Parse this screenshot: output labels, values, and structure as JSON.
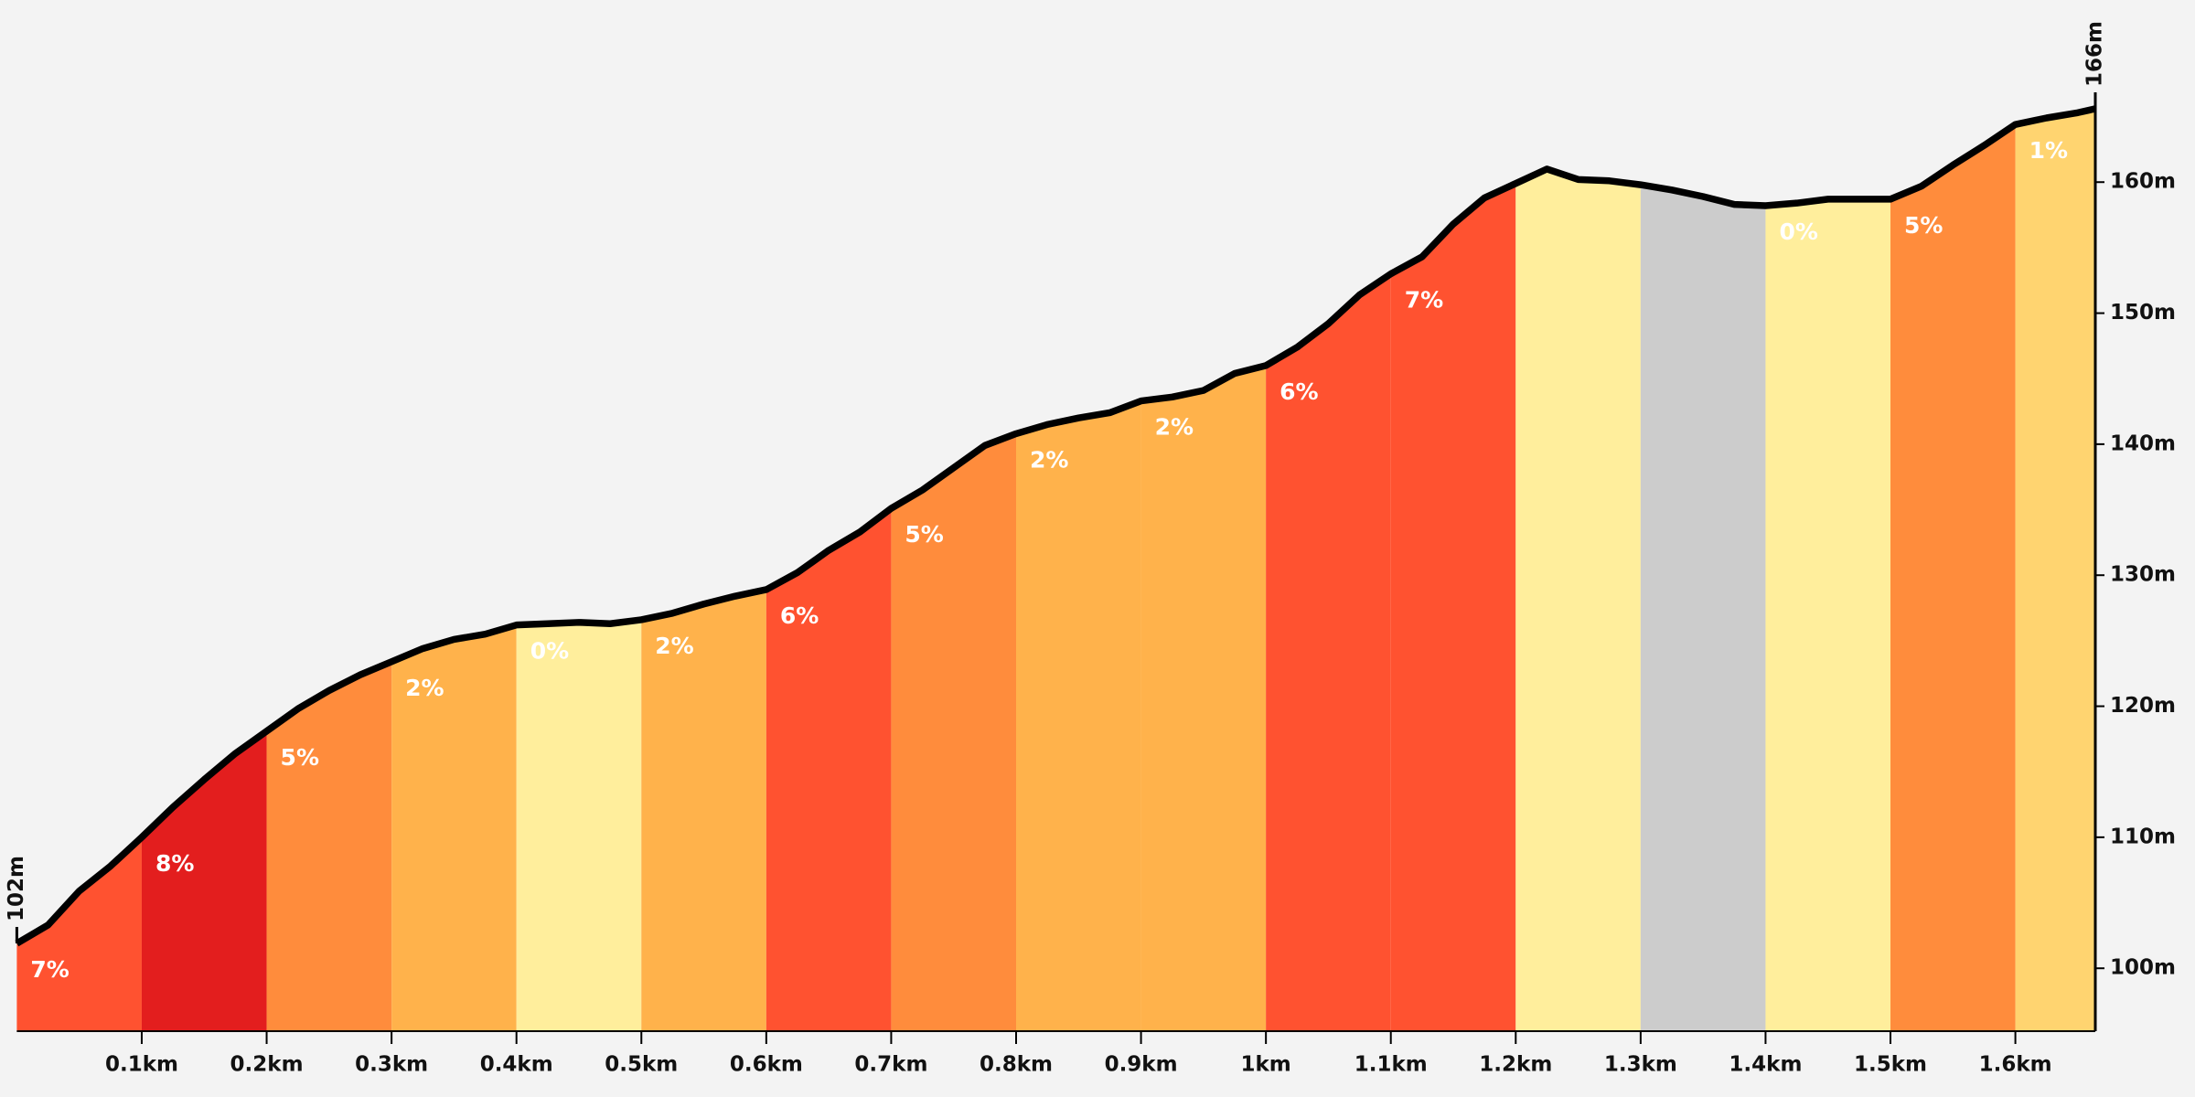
{
  "chart_data": {
    "type": "elevation-profile",
    "x": [
      0,
      0.025,
      0.05,
      0.075,
      0.1,
      0.125,
      0.15,
      0.175,
      0.2,
      0.225,
      0.25,
      0.275,
      0.3,
      0.325,
      0.35,
      0.375,
      0.4,
      0.425,
      0.45,
      0.475,
      0.5,
      0.525,
      0.55,
      0.575,
      0.6,
      0.625,
      0.65,
      0.675,
      0.7,
      0.725,
      0.75,
      0.775,
      0.8,
      0.825,
      0.85,
      0.875,
      0.9,
      0.925,
      0.95,
      0.975,
      1.0,
      1.025,
      1.05,
      1.075,
      1.1,
      1.125,
      1.15,
      1.175,
      1.2,
      1.225,
      1.25,
      1.275,
      1.3,
      1.325,
      1.35,
      1.375,
      1.4,
      1.425,
      1.45,
      1.475,
      1.5,
      1.525,
      1.55,
      1.575,
      1.6,
      1.625,
      1.65,
      1.664
    ],
    "values": [
      101.9,
      103.3,
      105.9,
      107.8,
      110.0,
      112.3,
      114.4,
      116.4,
      118.1,
      119.8,
      121.2,
      122.4,
      123.4,
      124.4,
      125.1,
      125.5,
      126.2,
      126.3,
      126.4,
      126.3,
      126.6,
      127.1,
      127.8,
      128.4,
      128.9,
      130.2,
      131.9,
      133.3,
      135.1,
      136.5,
      138.2,
      139.9,
      140.8,
      141.5,
      142.0,
      142.4,
      143.3,
      143.6,
      144.1,
      145.4,
      146.0,
      147.4,
      149.2,
      151.4,
      153.0,
      154.3,
      156.8,
      158.8,
      159.9,
      161.0,
      160.2,
      160.1,
      159.8,
      159.4,
      158.9,
      158.3,
      158.2,
      158.4,
      158.7,
      158.7,
      158.7,
      159.7,
      161.3,
      162.8,
      164.4,
      164.9,
      165.3,
      165.6
    ],
    "start_label": "102m",
    "end_label": "166m",
    "segments": [
      {
        "start": 0,
        "end": 0.1,
        "color": "#ff5230",
        "label": "7%"
      },
      {
        "start": 0.1,
        "end": 0.2,
        "color": "#e31e1e",
        "label": "8%"
      },
      {
        "start": 0.2,
        "end": 0.3,
        "color": "#ff8c3c",
        "label": "5%"
      },
      {
        "start": 0.3,
        "end": 0.4,
        "color": "#ffb24b",
        "label": "2%"
      },
      {
        "start": 0.4,
        "end": 0.5,
        "color": "#ffee9c",
        "label": "0%"
      },
      {
        "start": 0.5,
        "end": 0.6,
        "color": "#ffb24b",
        "label": "2%"
      },
      {
        "start": 0.6,
        "end": 0.7,
        "color": "#ff5230",
        "label": "6%"
      },
      {
        "start": 0.7,
        "end": 0.8,
        "color": "#ff8c3c",
        "label": "5%"
      },
      {
        "start": 0.8,
        "end": 0.9,
        "color": "#ffb24b",
        "label": "2%"
      },
      {
        "start": 0.9,
        "end": 1.0,
        "color": "#ffb24b",
        "label": "2%"
      },
      {
        "start": 1.0,
        "end": 1.1,
        "color": "#ff5230",
        "label": "6%"
      },
      {
        "start": 1.1,
        "end": 1.2,
        "color": "#ff5230",
        "label": "7%"
      },
      {
        "start": 1.2,
        "end": 1.3,
        "color": "#ffee9c"
      },
      {
        "start": 1.3,
        "end": 1.4,
        "color": "#cccccc"
      },
      {
        "start": 1.4,
        "end": 1.5,
        "color": "#ffee9c",
        "label": "0%"
      },
      {
        "start": 1.5,
        "end": 1.6,
        "color": "#ff8c3c",
        "label": "5%"
      },
      {
        "start": 1.6,
        "end": 1.664,
        "color": "#ffd470",
        "label": "1%"
      }
    ],
    "xlim": [
      0,
      1.664
    ],
    "ylim": [
      95.2,
      173.9
    ],
    "xticks": [
      {
        "value": 0.1,
        "label": "0.1km"
      },
      {
        "value": 0.2,
        "label": "0.2km"
      },
      {
        "value": 0.3,
        "label": "0.3km"
      },
      {
        "value": 0.4,
        "label": "0.4km"
      },
      {
        "value": 0.5,
        "label": "0.5km"
      },
      {
        "value": 0.6,
        "label": "0.6km"
      },
      {
        "value": 0.7,
        "label": "0.7km"
      },
      {
        "value": 0.8,
        "label": "0.8km"
      },
      {
        "value": 0.9,
        "label": "0.9km"
      },
      {
        "value": 1,
        "label": "1km"
      },
      {
        "value": 1.1,
        "label": "1.1km"
      },
      {
        "value": 1.2,
        "label": "1.2km"
      },
      {
        "value": 1.3,
        "label": "1.3km"
      },
      {
        "value": 1.4,
        "label": "1.4km"
      },
      {
        "value": 1.5,
        "label": "1.5km"
      },
      {
        "value": 1.6,
        "label": "1.6km"
      }
    ],
    "yticks": [
      {
        "value": 100,
        "label": "100m"
      },
      {
        "value": 110,
        "label": "110m"
      },
      {
        "value": 120,
        "label": "120m"
      },
      {
        "value": 130,
        "label": "130m"
      },
      {
        "value": 140,
        "label": "140m"
      },
      {
        "value": 150,
        "label": "150m"
      },
      {
        "value": 160,
        "label": "160m"
      }
    ],
    "line_color": "#000000"
  }
}
